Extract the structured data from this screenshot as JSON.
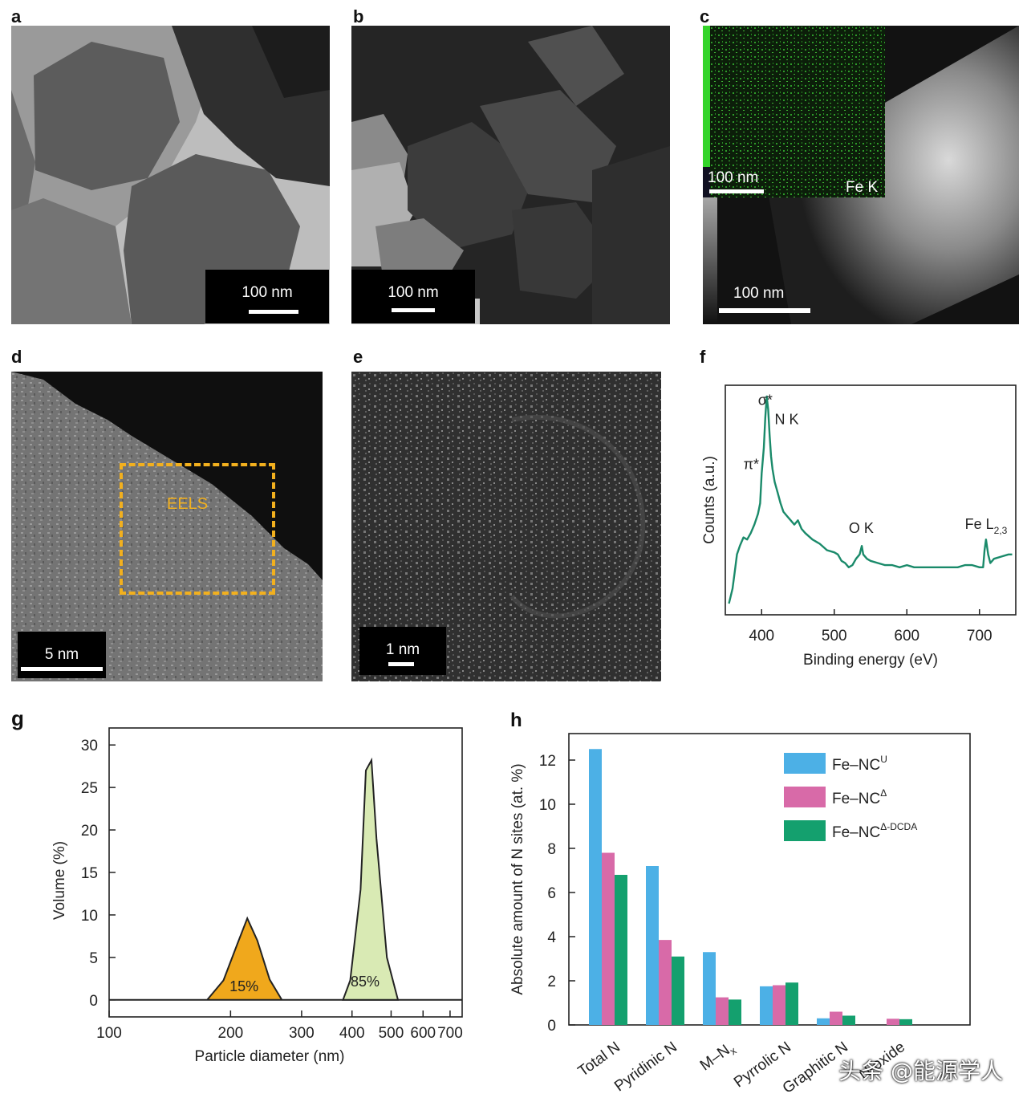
{
  "panels": {
    "a": {
      "letter": "a",
      "scale": "100 nm"
    },
    "b": {
      "letter": "b",
      "scale": "100 nm"
    },
    "c": {
      "letter": "c",
      "scale": "100 nm",
      "inset_scale": "100 nm",
      "inset_label": "Fe K"
    },
    "d": {
      "letter": "d",
      "scale": "5 nm",
      "roi_label": "EELS"
    },
    "e": {
      "letter": "e",
      "scale": "1 nm"
    },
    "f": {
      "letter": "f"
    },
    "g": {
      "letter": "g"
    },
    "h": {
      "letter": "h"
    }
  },
  "watermark": "头条 @能源学人",
  "colors": {
    "eels": "#1a8a6a",
    "g_small": "#f0a81c",
    "g_large": "#d9eab4",
    "h_u": "#4cb0e6",
    "h_delta": "#d86aa8",
    "h_dcda": "#14a06e",
    "roi": "#f2b01e"
  },
  "chart_data": [
    {
      "id": "f",
      "type": "line",
      "xlabel": "Binding energy (eV)",
      "ylabel": "Counts (a.u.)",
      "xlim": [
        350,
        750
      ],
      "xticks": [
        400,
        500,
        600,
        700
      ],
      "annotations": [
        {
          "text": "σ*",
          "x": 395,
          "y": 0.96
        },
        {
          "text": "N K",
          "x": 418,
          "y": 0.87
        },
        {
          "text": "π*",
          "x": 375,
          "y": 0.66
        },
        {
          "text": "O K",
          "x": 520,
          "y": 0.36
        },
        {
          "text": "Fe L",
          "sub": "2,3",
          "x": 680,
          "y": 0.38
        }
      ],
      "series": [
        {
          "x": [
            355,
            360,
            363,
            366,
            370,
            375,
            380,
            385,
            390,
            395,
            398,
            400,
            403,
            405,
            407,
            409,
            411,
            413,
            415,
            418,
            422,
            426,
            430,
            435,
            440,
            445,
            450,
            455,
            460,
            470,
            480,
            490,
            500,
            505,
            510,
            515,
            520,
            525,
            530,
            535,
            538,
            540,
            545,
            550,
            560,
            570,
            580,
            590,
            600,
            610,
            620,
            630,
            640,
            650,
            660,
            670,
            680,
            690,
            700,
            705,
            707,
            709,
            712,
            715,
            720,
            730,
            740,
            745
          ],
          "y": [
            0.03,
            0.1,
            0.18,
            0.26,
            0.3,
            0.34,
            0.33,
            0.36,
            0.4,
            0.45,
            0.5,
            0.64,
            0.76,
            0.9,
            1.0,
            0.94,
            0.82,
            0.72,
            0.66,
            0.6,
            0.55,
            0.5,
            0.46,
            0.44,
            0.42,
            0.4,
            0.42,
            0.38,
            0.36,
            0.33,
            0.31,
            0.28,
            0.27,
            0.26,
            0.23,
            0.22,
            0.2,
            0.21,
            0.24,
            0.26,
            0.3,
            0.26,
            0.24,
            0.23,
            0.22,
            0.21,
            0.21,
            0.2,
            0.21,
            0.2,
            0.2,
            0.2,
            0.2,
            0.2,
            0.2,
            0.2,
            0.21,
            0.21,
            0.2,
            0.2,
            0.28,
            0.33,
            0.26,
            0.22,
            0.24,
            0.25,
            0.26,
            0.26
          ]
        }
      ]
    },
    {
      "id": "g",
      "type": "area",
      "xlabel": "Particle diameter (nm)",
      "ylabel": "Volume (%)",
      "xscale": "log",
      "xlim": [
        100,
        750
      ],
      "xticks": [
        100,
        200,
        300,
        400,
        500,
        600,
        700
      ],
      "ylim": [
        -2,
        32
      ],
      "yticks": [
        0,
        5,
        10,
        15,
        20,
        25,
        30
      ],
      "series": [
        {
          "label": "15%",
          "x": [
            100,
            175,
            192,
            208,
            220,
            233,
            250,
            268,
            750
          ],
          "y": [
            0,
            0,
            2.3,
            6.6,
            9.6,
            7.0,
            2.4,
            0,
            0
          ]
        },
        {
          "label": "85%",
          "x": [
            380,
            396,
            420,
            433,
            447,
            460,
            488,
            520
          ],
          "y": [
            0,
            2.3,
            13.0,
            27.0,
            28.2,
            19.0,
            5.0,
            0
          ]
        }
      ]
    },
    {
      "id": "h",
      "type": "bar",
      "ylabel": "Absolute amount of N sites (at. %)",
      "ylim": [
        0,
        13.2
      ],
      "yticks": [
        0,
        2,
        4,
        6,
        8,
        10,
        12
      ],
      "categories": [
        "Total N",
        "Pyridinic N",
        "M–N",
        "Pyrrolic N",
        "Graphitic N",
        "N-oxide"
      ],
      "category_sub": [
        "",
        "",
        "x",
        "",
        "",
        ""
      ],
      "legend_position": "top-right",
      "series": [
        {
          "name": "Fe–NC",
          "sup": "U",
          "values": [
            12.5,
            7.2,
            3.3,
            1.75,
            0.3,
            0.0
          ]
        },
        {
          "name": "Fe–NC",
          "sup": "Δ",
          "values": [
            7.8,
            3.85,
            1.25,
            1.8,
            0.6,
            0.28
          ]
        },
        {
          "name": "Fe–NC",
          "sup": "Δ-DCDA",
          "values": [
            6.8,
            3.1,
            1.15,
            1.92,
            0.42,
            0.26
          ]
        }
      ]
    }
  ]
}
